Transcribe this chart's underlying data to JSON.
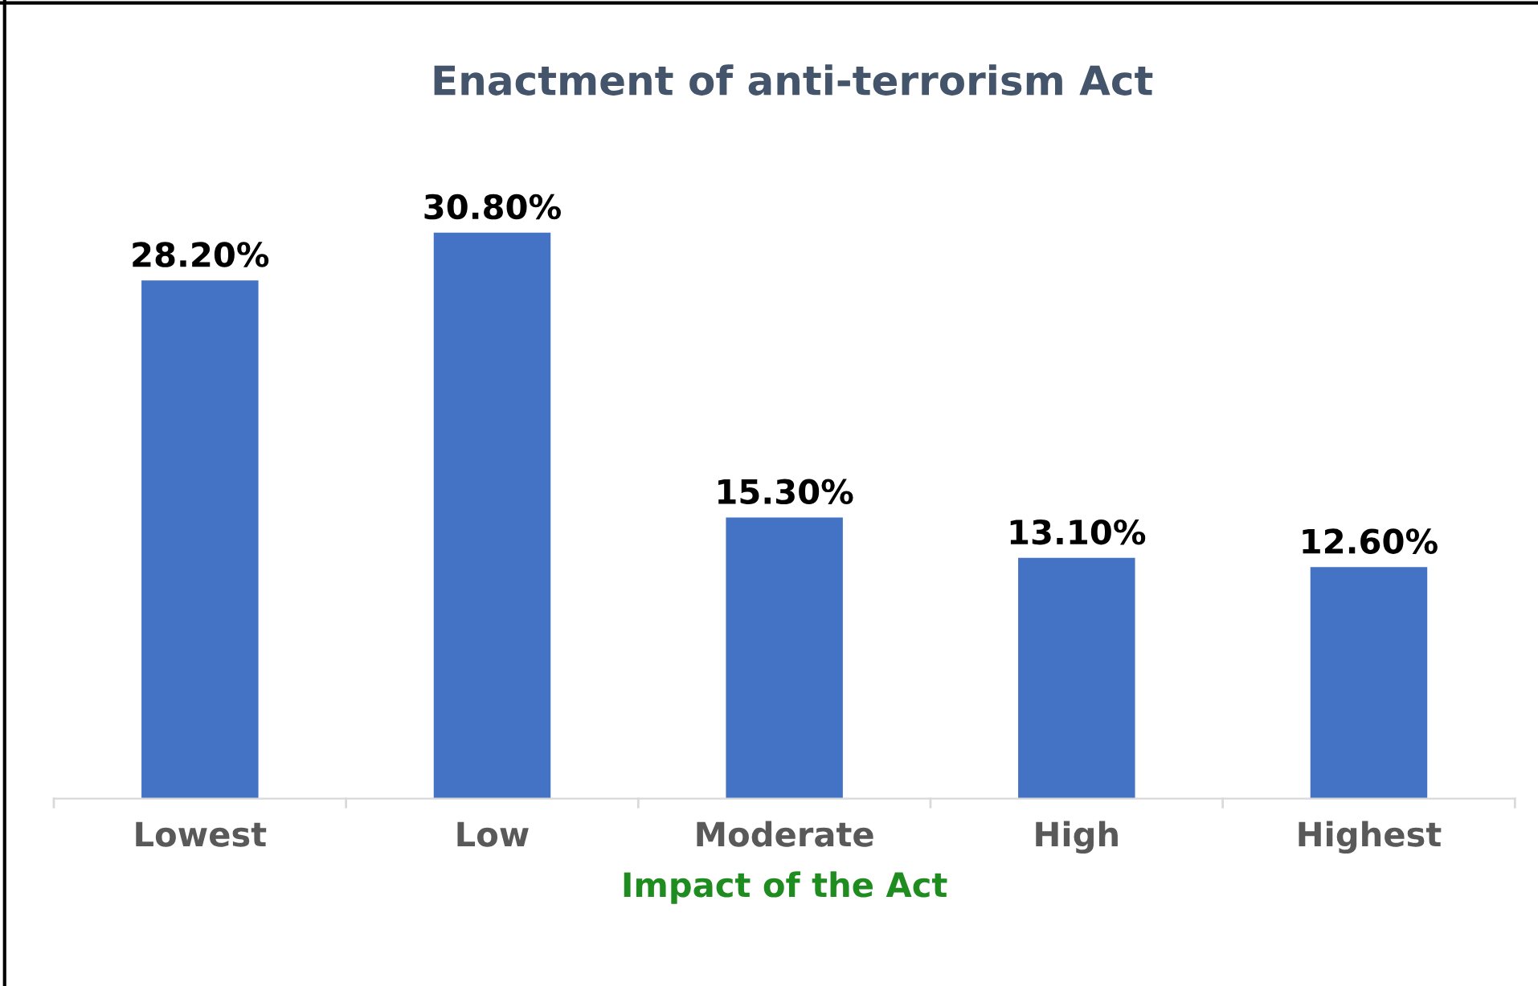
{
  "chart_data": {
    "type": "bar",
    "title": "Enactment of anti-terrorism Act",
    "xlabel": "Impact of the Act",
    "categories": [
      "Lowest",
      "Low",
      "Moderate",
      "High",
      "Highest"
    ],
    "values": [
      28.2,
      30.8,
      15.3,
      13.1,
      12.6
    ],
    "value_labels": [
      "28.20%",
      "30.80%",
      "15.30%",
      "13.10%",
      "12.60%"
    ],
    "color": "#4472c4",
    "grid": false,
    "legend": false,
    "tick_labels": "x"
  }
}
